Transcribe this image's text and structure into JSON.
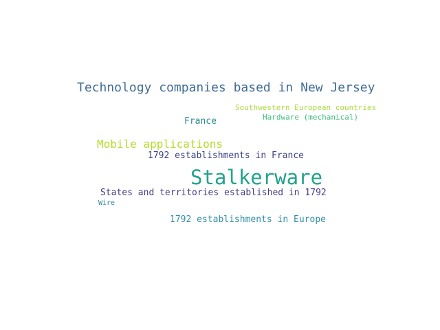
{
  "words": [
    {
      "text": "Technology companies based in New Jersey",
      "color": "#3f6d95"
    },
    {
      "text": "Southwestern European countries",
      "color": "#a8dc3c"
    },
    {
      "text": "Hardware (mechanical)",
      "color": "#3fbd7d"
    },
    {
      "text": "France",
      "color": "#2d8a92"
    },
    {
      "text": "Mobile applications",
      "color": "#b4dc2a"
    },
    {
      "text": "1792 establishments in France",
      "color": "#3a3f84"
    },
    {
      "text": "Stalkerware",
      "color": "#24a38a"
    },
    {
      "text": "States and territories established in 1792",
      "color": "#453b85"
    },
    {
      "text": "Wire",
      "color": "#2d8aa0"
    },
    {
      "text": "1792 establishments in Europe",
      "color": "#2f8ea8"
    }
  ]
}
